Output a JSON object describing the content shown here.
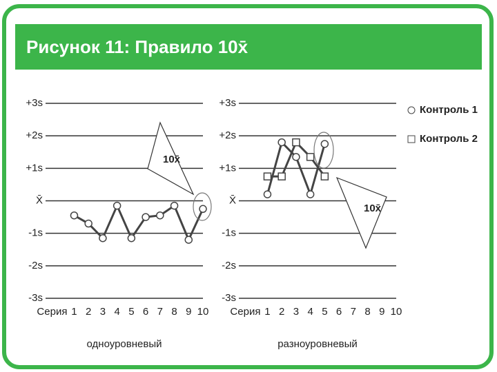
{
  "title": "Рисунок 11: Правило 10x̄",
  "chart_data": [
    {
      "type": "line",
      "x_row_label": "Серия",
      "xlabel": "одноуровневый",
      "annotation": "10x̄",
      "xlim": [
        -1,
        10
      ],
      "xticks": [
        1,
        2,
        3,
        4,
        5,
        6,
        7,
        8,
        9,
        10
      ],
      "ylim": [
        -3,
        3
      ],
      "yticks": [
        {
          "value": -3,
          "label": "-3s"
        },
        {
          "value": -2,
          "label": "-2s"
        },
        {
          "value": -1,
          "label": "-1s"
        },
        {
          "value": 0,
          "label": "X̄"
        },
        {
          "value": 1,
          "label": "+1s"
        },
        {
          "value": 2,
          "label": "+2s"
        },
        {
          "value": 3,
          "label": "+3s"
        }
      ],
      "grid": true,
      "series": [
        {
          "color": "#444444",
          "marker": "circle",
          "x": [
            1,
            2,
            3,
            4,
            5,
            6,
            7,
            8,
            9,
            10
          ],
          "values": [
            -0.45,
            -0.7,
            -1.15,
            -0.15,
            -1.15,
            -0.5,
            -0.45,
            -0.15,
            -1.2,
            -0.25
          ]
        }
      ]
    },
    {
      "type": "line",
      "x_row_label": "Серия",
      "xlabel": "разноуровневый",
      "annotation": "10x̄",
      "xlim": [
        -1,
        10
      ],
      "xticks": [
        1,
        2,
        3,
        4,
        5,
        6,
        7,
        8,
        9,
        10
      ],
      "ylim": [
        -3,
        3
      ],
      "yticks": [
        {
          "value": -3,
          "label": "-3s"
        },
        {
          "value": -2,
          "label": "-2s"
        },
        {
          "value": -1,
          "label": "-1s"
        },
        {
          "value": 0,
          "label": "X̄"
        },
        {
          "value": 1,
          "label": "+1s"
        },
        {
          "value": 2,
          "label": "+2s"
        },
        {
          "value": 3,
          "label": "+3s"
        }
      ],
      "grid": true,
      "series": [
        {
          "name": "Контроль 1",
          "color": "#444444",
          "marker": "circle",
          "x": [
            1,
            2,
            3,
            4,
            5
          ],
          "values": [
            0.2,
            1.8,
            1.35,
            0.2,
            1.75
          ]
        },
        {
          "name": "Контроль 2",
          "color": "#444444",
          "marker": "square",
          "x": [
            1,
            2,
            3,
            4,
            5
          ],
          "values": [
            0.75,
            0.75,
            1.8,
            1.35,
            0.75
          ]
        }
      ]
    }
  ]
}
